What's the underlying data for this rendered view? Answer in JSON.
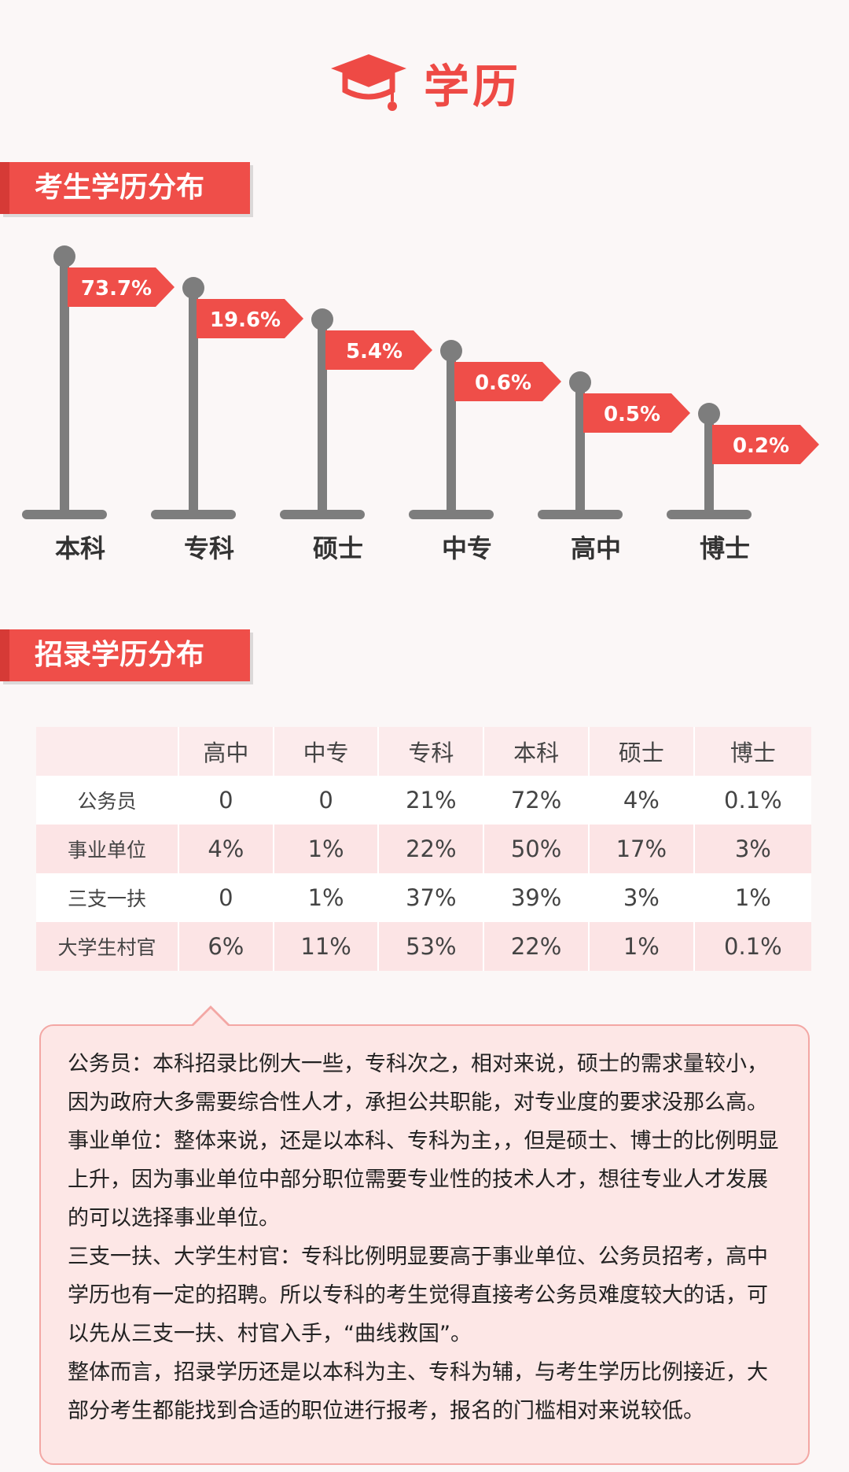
{
  "header": {
    "title": "学历",
    "icon": "graduation-cap-icon",
    "accent": "#ee4a45"
  },
  "section1": {
    "title": "考生学历分布"
  },
  "section2": {
    "title": "招录学历分布"
  },
  "chart_data": {
    "type": "bar",
    "title": "考生学历分布",
    "categories": [
      "本科",
      "专科",
      "硕士",
      "中专",
      "高中",
      "博士"
    ],
    "values": [
      73.7,
      19.6,
      5.4,
      0.6,
      0.5,
      0.2
    ],
    "value_labels": [
      "73.7%",
      "19.6%",
      "5.4%",
      "0.6%",
      "0.5%",
      "0.2%"
    ],
    "unit": "%",
    "grid": false,
    "legend": "none",
    "flag_color": "#ef4e49",
    "pole_color": "#7d7d7d"
  },
  "table": {
    "columns": [
      "高中",
      "中专",
      "专科",
      "本科",
      "硕士",
      "博士"
    ],
    "rows": [
      {
        "label": "公务员",
        "cells": [
          "0",
          "0",
          "21%",
          "72%",
          "4%",
          "0.1%"
        ]
      },
      {
        "label": "事业单位",
        "cells": [
          "4%",
          "1%",
          "22%",
          "50%",
          "17%",
          "3%"
        ]
      },
      {
        "label": "三支一扶",
        "cells": [
          "0",
          "1%",
          "37%",
          "39%",
          "3%",
          "1%"
        ]
      },
      {
        "label": "大学生村官",
        "cells": [
          "6%",
          "11%",
          "53%",
          "22%",
          "1%",
          "0.1%"
        ]
      }
    ]
  },
  "notes": [
    "公务员：本科招录比例大一些，专科次之，相对来说，硕士的需求量较小，因为政府大多需要综合性人才，承担公共职能，对专业度的要求没那么高。",
    "事业单位：整体来说，还是以本科、专科为主，，但是硕士、博士的比例明显上升，因为事业单位中部分职位需要专业性的技术人才，想往专业人才发展的可以选择事业单位。",
    "三支一扶、大学生村官：专科比例明显要高于事业单位、公务员招考，高中学历也有一定的招聘。所以专科的考生觉得直接考公务员难度较大的话，可以先从三支一扶、村官入手，“曲线救国”。",
    "整体而言，招录学历还是以本科为主、专科为辅，与考生学历比例接近，大部分考生都能找到合适的职位进行报考，报名的门槛相对来说较低。"
  ]
}
